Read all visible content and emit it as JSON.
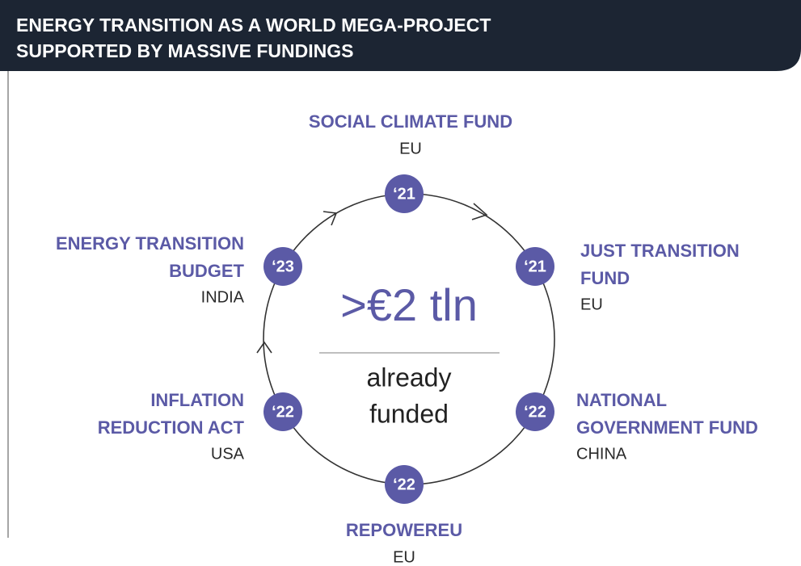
{
  "header": {
    "title": [
      "ENERGY TRANSITION AS A WORLD MEGA-PROJECT",
      "SUPPORTED BY MASSIVE FUNDINGS"
    ]
  },
  "center": {
    "amount": ">€2 tln",
    "caption": [
      "already",
      "funded"
    ]
  },
  "nodes": [
    {
      "year": "‘21",
      "name": [
        "SOCIAL CLIMATE FUND"
      ],
      "region": "EU"
    },
    {
      "year": "‘21",
      "name": [
        "JUST TRANSITION",
        "FUND"
      ],
      "region": "EU"
    },
    {
      "year": "‘22",
      "name": [
        "NATIONAL",
        "GOVERNMENT FUND"
      ],
      "region": "CHINA"
    },
    {
      "year": "‘22",
      "name": [
        "REPOWEREU"
      ],
      "region": "EU"
    },
    {
      "year": "‘22",
      "name": [
        "INFLATION",
        "REDUCTION ACT"
      ],
      "region": "USA"
    },
    {
      "year": "‘23",
      "name": [
        "ENERGY TRANSITION",
        "BUDGET"
      ],
      "region": "INDIA"
    }
  ]
}
